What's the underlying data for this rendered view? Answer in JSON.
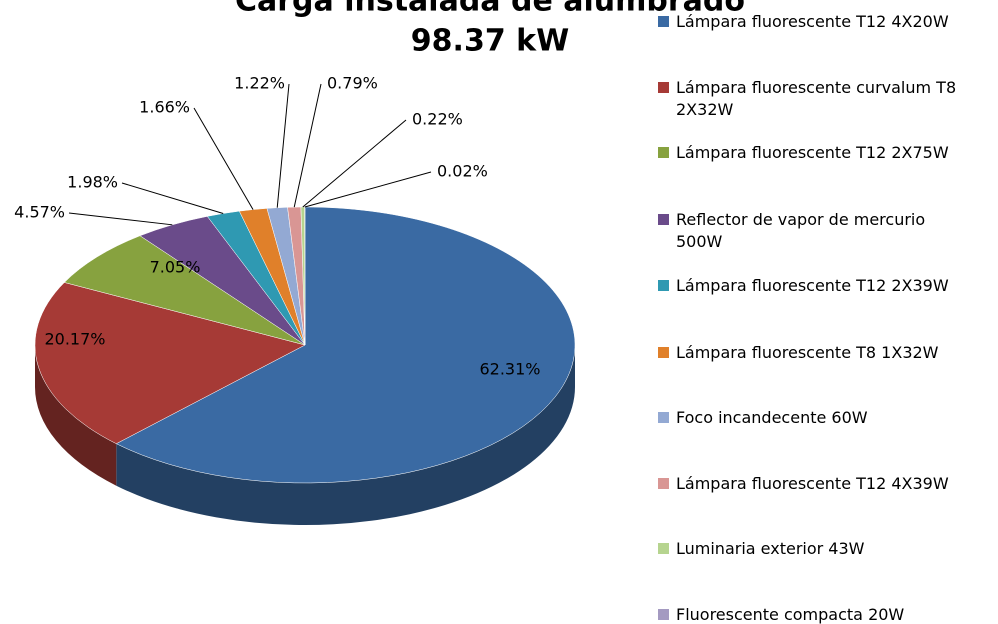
{
  "chart_data": {
    "type": "pie",
    "title": "Carga instalada de alumbrado",
    "subtitle": "98.37 kW",
    "categories": [
      "Lámpara fluorescente T12 4X20W",
      "Lámpara fluorescente curvalum T8 2X32W",
      "Lámpara fluorescente T12 2X75W",
      "Reflector de vapor de mercurio 500W",
      "Lámpara fluorescente T12 2X39W",
      "Lámpara fluorescente T8 1X32W",
      "Foco incandecente 60W",
      "Lámpara fluorescente T12 4X39W",
      "Luminaria exterior 43W",
      "Fluorescente compacta 20W"
    ],
    "values": [
      62.31,
      20.17,
      7.05,
      4.57,
      1.98,
      1.66,
      1.22,
      0.79,
      0.22,
      0.02
    ],
    "value_labels": [
      "62.31%",
      "20.17%",
      "7.05%",
      "4.57%",
      "1.98%",
      "1.66%",
      "1.22%",
      "0.79%",
      "0.22%",
      "0.02%"
    ],
    "colors": [
      "#3a6aa3",
      "#a63a36",
      "#87a23f",
      "#6a4b8a",
      "#2f99b2",
      "#e0802a",
      "#93a9d3",
      "#d99694",
      "#b6d48f",
      "#a49ac1"
    ],
    "legend": "right"
  }
}
